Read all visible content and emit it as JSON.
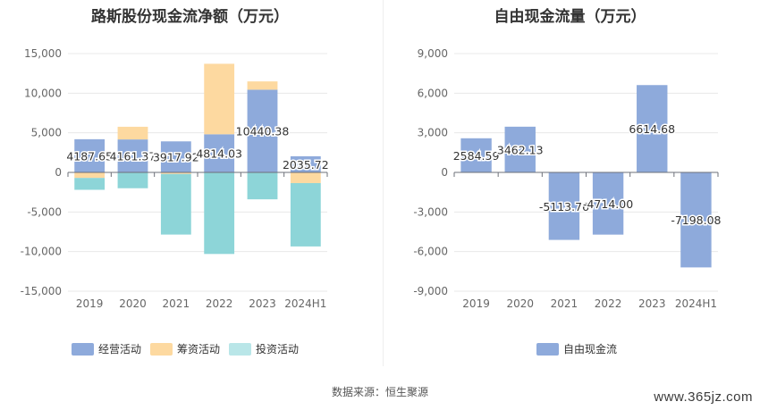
{
  "source_label": "数据来源：恒生聚源",
  "watermark": "www.365jz.com",
  "colors": {
    "operating": "#8eaadb",
    "financing": "#fdd9a0",
    "investing": "#8dd5d8",
    "investing_legend": "#b9e6e8",
    "fcf": "#8eaadb",
    "grid": "#e8e8e8",
    "axis_text": "#666666"
  },
  "chart_data": [
    {
      "type": "bar",
      "stacked": true,
      "title": "路斯股份现金流净额（万元）",
      "categories": [
        "2019",
        "2020",
        "2021",
        "2022",
        "2023",
        "2024H1"
      ],
      "ylim": [
        -15000,
        15000
      ],
      "yticks": [
        15000,
        10000,
        5000,
        0,
        -5000,
        -10000,
        -15000
      ],
      "ytick_labels": [
        "15,000",
        "10,000",
        "5,000",
        "0",
        "-5,000",
        "-10,000",
        "-15,000"
      ],
      "series": [
        {
          "name": "经营活动",
          "values": [
            4187.65,
            4161.37,
            3917.92,
            4814.03,
            10440.38,
            2035.72
          ]
        },
        {
          "name": "筹资活动",
          "values": [
            -700,
            1600,
            -200,
            8900,
            1050,
            -1350
          ]
        },
        {
          "name": "投资活动",
          "values": [
            -1500,
            -2000,
            -7650,
            -10300,
            -3400,
            -8000
          ]
        }
      ],
      "data_labels": [
        "4187.65",
        "4161.37",
        "3917.92",
        "4814.03",
        "10440.38",
        "2035.72"
      ],
      "legend": "bottom",
      "grid": true
    },
    {
      "type": "bar",
      "title": "自由现金流量（万元）",
      "categories": [
        "2019",
        "2020",
        "2021",
        "2022",
        "2023",
        "2024H1"
      ],
      "ylim": [
        -9000,
        9000
      ],
      "yticks": [
        9000,
        6000,
        3000,
        0,
        -3000,
        -6000,
        -9000
      ],
      "ytick_labels": [
        "9,000",
        "6,000",
        "3,000",
        "0",
        "-3,000",
        "-6,000",
        "-9,000"
      ],
      "series": [
        {
          "name": "自由现金流",
          "values": [
            2584.59,
            3462.13,
            -5113.76,
            -4714.0,
            6614.68,
            -7198.08
          ]
        }
      ],
      "data_labels": [
        "2584.59",
        "3462.13",
        "-5113.76",
        "-4714.00",
        "6614.68",
        "-7198.08"
      ],
      "legend": "bottom",
      "grid": true
    }
  ]
}
